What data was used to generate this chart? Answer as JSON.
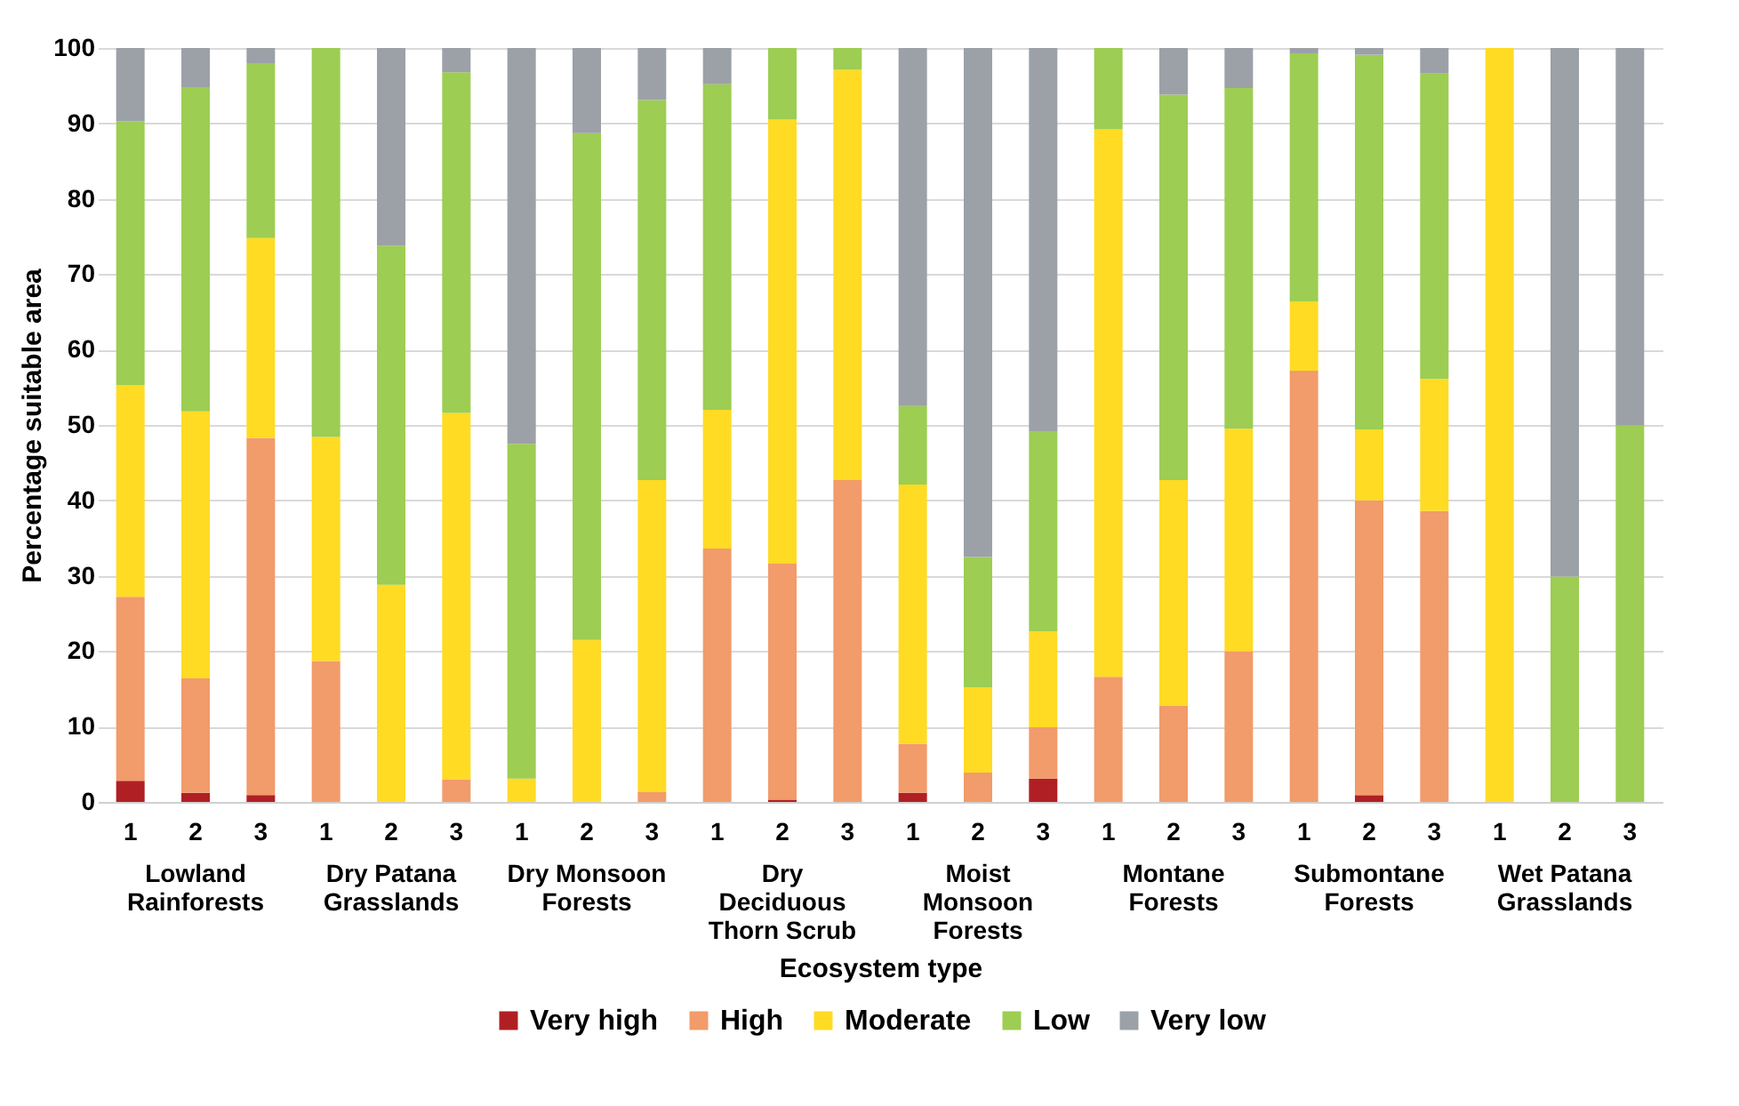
{
  "chart_data": {
    "type": "bar",
    "stacked": true,
    "xlabel": "Ecosystem type",
    "ylabel": "Percentage suitable area",
    "categories": [
      "1",
      "2",
      "3",
      "1",
      "2",
      "3",
      "1",
      "2",
      "3",
      "1",
      "2",
      "3",
      "1",
      "2",
      "3",
      "1",
      "2",
      "3",
      "1",
      "2",
      "3",
      "1",
      "2",
      "3"
    ],
    "annotations": [
      "Lowland Rainforests",
      "Dry Patana Grasslands",
      "Dry Monsoon Forests",
      "Dry Deciduous Thorn Scrub",
      "Moist Monsoon Forests",
      "Montane Forests",
      "Submontane Forests",
      "Wet Patana Grasslands"
    ],
    "series": [
      {
        "name": "Very high",
        "color": "#b01f24",
        "values": [
          2.8,
          1.2,
          0.9,
          0,
          0,
          0,
          0,
          0,
          0,
          0,
          0.3,
          0,
          1.2,
          0,
          3.1,
          0,
          0,
          0,
          0,
          0.9,
          0,
          0,
          0,
          0
        ]
      },
      {
        "name": "High",
        "color": "#f29b6b",
        "values": [
          24.4,
          15.2,
          47.4,
          18.7,
          0,
          3.0,
          0,
          0,
          1.3,
          33.6,
          31.3,
          42.7,
          6.5,
          3.9,
          6.8,
          16.6,
          12.8,
          20.0,
          57.2,
          39.1,
          38.6,
          0,
          0,
          0
        ]
      },
      {
        "name": "Moderate",
        "color": "#ffdb24",
        "values": [
          28.1,
          35.4,
          26.5,
          29.7,
          28.8,
          48.6,
          3.1,
          21.5,
          41.4,
          18.4,
          58.9,
          54.4,
          34.4,
          11.3,
          12.7,
          72.6,
          29.9,
          29.5,
          9.2,
          9.4,
          17.5,
          100,
          0,
          0
        ]
      },
      {
        "name": "Low",
        "color": "#9dcd52",
        "values": [
          35.0,
          43.0,
          23.2,
          51.6,
          45.0,
          45.2,
          44.4,
          67.2,
          50.4,
          43.2,
          9.5,
          2.9,
          10.4,
          17.3,
          26.5,
          10.8,
          51.1,
          45.2,
          32.9,
          49.7,
          40.5,
          0,
          29.9,
          49.9
        ]
      },
      {
        "name": "Very low",
        "color": "#9ba1a7",
        "values": [
          9.7,
          5.2,
          2.0,
          0,
          26.2,
          3.2,
          52.5,
          11.3,
          6.9,
          4.8,
          0,
          0,
          47.5,
          67.5,
          50.9,
          0,
          6.2,
          5.3,
          0.7,
          0.9,
          3.4,
          0,
          70.1,
          50.1
        ]
      }
    ],
    "ylim": [
      0,
      100
    ],
    "yticks": [
      0,
      10,
      20,
      30,
      40,
      50,
      60,
      70,
      80,
      90,
      100
    ],
    "grid": "y",
    "legend": "bottom"
  }
}
